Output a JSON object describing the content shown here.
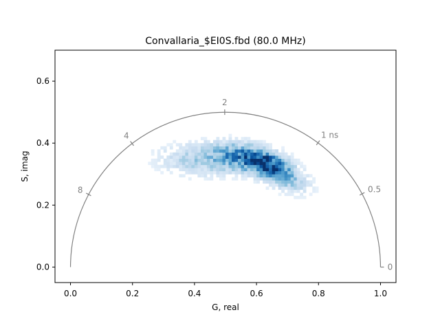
{
  "chart_data": {
    "type": "heatmap",
    "title": "Convallaria_$EI0S.fbd (80.0 MHz)",
    "xlabel": "G, real",
    "ylabel": "S, imag",
    "xlim": [
      -0.05,
      1.05
    ],
    "ylim": [
      -0.05,
      0.7
    ],
    "x_ticks": [
      {
        "value": 0.0,
        "label": "0.0"
      },
      {
        "value": 0.2,
        "label": "0.2"
      },
      {
        "value": 0.4,
        "label": "0.4"
      },
      {
        "value": 0.6,
        "label": "0.6"
      },
      {
        "value": 0.8,
        "label": "0.8"
      },
      {
        "value": 1.0,
        "label": "1.0"
      }
    ],
    "y_ticks": [
      {
        "value": 0.0,
        "label": "0.0"
      },
      {
        "value": 0.2,
        "label": "0.2"
      },
      {
        "value": 0.4,
        "label": "0.4"
      },
      {
        "value": 0.6,
        "label": "0.6"
      }
    ],
    "grid": false,
    "colormap": "Blues",
    "semicircle_color": "#808080",
    "lifetime_marks": [
      {
        "label": "0",
        "g": 1.0,
        "s": 0.0
      },
      {
        "label": "0.5",
        "g": 0.9406,
        "s": 0.2363
      },
      {
        "label": "1 ns",
        "g": 0.7985,
        "s": 0.4011
      },
      {
        "label": "2",
        "g": 0.4975,
        "s": 0.5
      },
      {
        "label": "4",
        "g": 0.1985,
        "s": 0.3989
      },
      {
        "label": "8",
        "g": 0.0583,
        "s": 0.2344
      }
    ],
    "density_clusters": [
      {
        "g": 0.635,
        "s": 0.33,
        "sigma_g": 0.05,
        "sigma_s": 0.028,
        "rho": -0.45,
        "weight": 1.0
      },
      {
        "g": 0.56,
        "s": 0.355,
        "sigma_g": 0.07,
        "sigma_s": 0.03,
        "rho": -0.3,
        "weight": 0.7
      },
      {
        "g": 0.42,
        "s": 0.345,
        "sigma_g": 0.09,
        "sigma_s": 0.035,
        "rho": -0.1,
        "weight": 0.35
      },
      {
        "g": 0.7,
        "s": 0.28,
        "sigma_g": 0.05,
        "sigma_s": 0.03,
        "rho": -0.4,
        "weight": 0.35
      }
    ]
  }
}
